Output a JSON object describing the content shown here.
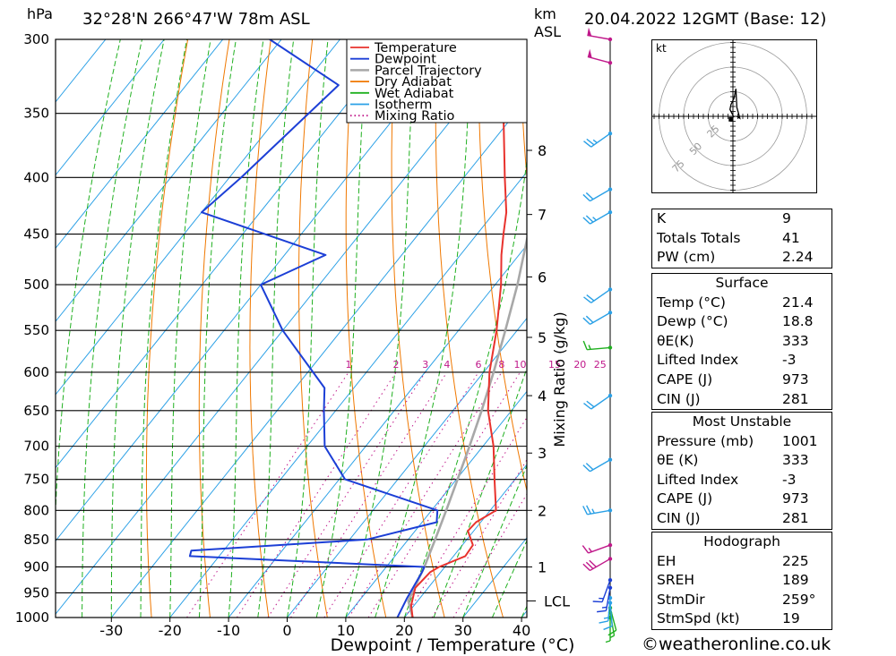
{
  "header": {
    "pressure_unit": "hPa",
    "location": "32°28'N 266°47'W 78m ASL",
    "km_label": "km",
    "asl_label": "ASL",
    "datetime": "20.04.2022 12GMT (Base: 12)"
  },
  "chart_data": {
    "type": "line",
    "title": "",
    "xlabel": "Dewpoint / Temperature (°C)",
    "ylabel": "hPa",
    "right_axis_label": "Mixing Ratio (g/kg)",
    "x_ticks": [
      -30,
      -20,
      -10,
      0,
      10,
      20,
      30,
      40
    ],
    "y_ticks": [
      300,
      350,
      400,
      450,
      500,
      550,
      600,
      650,
      700,
      750,
      800,
      850,
      900,
      950,
      1000
    ],
    "ylim": [
      1000,
      300
    ],
    "y_scale": "log",
    "skew": true,
    "legend_position": "top-right",
    "legend": [
      {
        "name": "Temperature",
        "color": "#e8322d",
        "style": "solid"
      },
      {
        "name": "Dewpoint",
        "color": "#1c3fd6",
        "style": "solid"
      },
      {
        "name": "Parcel Trajectory",
        "color": "#a8a8a8",
        "style": "solid"
      },
      {
        "name": "Dry Adiabat",
        "color": "#f07800",
        "style": "solid"
      },
      {
        "name": "Wet Adiabat",
        "color": "#20b020",
        "style": "solid"
      },
      {
        "name": "Isotherm",
        "color": "#2aa0e6",
        "style": "solid"
      },
      {
        "name": "Mixing Ratio",
        "color": "#c0188a",
        "style": "dotted"
      }
    ],
    "temperature": [
      {
        "p": 1000,
        "t": 21.4
      },
      {
        "p": 975,
        "t": 19.5
      },
      {
        "p": 940,
        "t": 17.8
      },
      {
        "p": 910,
        "t": 18.2
      },
      {
        "p": 900,
        "t": 19.0
      },
      {
        "p": 880,
        "t": 22.0
      },
      {
        "p": 860,
        "t": 21.8
      },
      {
        "p": 835,
        "t": 19.0
      },
      {
        "p": 820,
        "t": 19.2
      },
      {
        "p": 800,
        "t": 21.0
      },
      {
        "p": 750,
        "t": 16.5
      },
      {
        "p": 700,
        "t": 11.8
      },
      {
        "p": 650,
        "t": 6.0
      },
      {
        "p": 600,
        "t": 1.0
      },
      {
        "p": 550,
        "t": -3.5
      },
      {
        "p": 500,
        "t": -9.0
      },
      {
        "p": 470,
        "t": -13.0
      },
      {
        "p": 450,
        "t": -15.5
      },
      {
        "p": 430,
        "t": -18.0
      },
      {
        "p": 400,
        "t": -23.0
      },
      {
        "p": 350,
        "t": -32.0
      },
      {
        "p": 300,
        "t": -42.5
      }
    ],
    "dewpoint": [
      {
        "p": 1000,
        "t": 18.8
      },
      {
        "p": 960,
        "t": 17.8
      },
      {
        "p": 910,
        "t": 16.8
      },
      {
        "p": 900,
        "t": 16.5
      },
      {
        "p": 880,
        "t": -25.0
      },
      {
        "p": 870,
        "t": -25.5
      },
      {
        "p": 855,
        "t": -4.0
      },
      {
        "p": 850,
        "t": 3.0
      },
      {
        "p": 820,
        "t": 12.5
      },
      {
        "p": 800,
        "t": 11.0
      },
      {
        "p": 750,
        "t": -9.0
      },
      {
        "p": 700,
        "t": -17.0
      },
      {
        "p": 650,
        "t": -22.0
      },
      {
        "p": 620,
        "t": -25.0
      },
      {
        "p": 550,
        "t": -40.0
      },
      {
        "p": 500,
        "t": -50.0
      },
      {
        "p": 470,
        "t": -43.0
      },
      {
        "p": 430,
        "t": -70.0
      },
      {
        "p": 400,
        "t": -68.0
      },
      {
        "p": 330,
        "t": -64.0
      },
      {
        "p": 300,
        "t": -82.0
      }
    ],
    "parcel": [
      {
        "p": 1000,
        "t": 21.4
      },
      {
        "p": 966,
        "t": 18.4
      },
      {
        "p": 900,
        "t": 16.5
      },
      {
        "p": 850,
        "t": 14.6
      },
      {
        "p": 800,
        "t": 12.5
      },
      {
        "p": 750,
        "t": 10.2
      },
      {
        "p": 700,
        "t": 7.7
      },
      {
        "p": 650,
        "t": 4.9
      },
      {
        "p": 600,
        "t": 1.7
      },
      {
        "p": 550,
        "t": -2.0
      },
      {
        "p": 500,
        "t": -6.2
      },
      {
        "p": 450,
        "t": -11.3
      },
      {
        "p": 400,
        "t": -17.4
      },
      {
        "p": 350,
        "t": -25.0
      },
      {
        "p": 300,
        "t": -34.5
      }
    ],
    "km_ticks": [
      {
        "km": "1",
        "p": 900
      },
      {
        "km": "2",
        "p": 800
      },
      {
        "km": "3",
        "p": 710
      },
      {
        "km": "4",
        "p": 630
      },
      {
        "km": "5",
        "p": 558
      },
      {
        "km": "6",
        "p": 492
      },
      {
        "km": "7",
        "p": 432
      },
      {
        "km": "8",
        "p": 378
      }
    ],
    "lcl": {
      "label": "LCL",
      "p": 966
    },
    "mixing_ratio_labels": [
      "1",
      "2",
      "3",
      "4",
      "6",
      "8",
      "10",
      "15",
      "20",
      "25"
    ],
    "mixing_ratio_values": [
      1,
      2,
      3,
      4,
      6,
      8,
      10,
      15,
      20,
      25
    ],
    "wind_profile": [
      {
        "p": 1000,
        "dir": 180,
        "spd": 5,
        "color": "#20b020"
      },
      {
        "p": 990,
        "dir": 170,
        "spd": 5,
        "color": "#20b020"
      },
      {
        "p": 980,
        "dir": 165,
        "spd": 10,
        "color": "#20b020"
      },
      {
        "p": 970,
        "dir": 175,
        "spd": 10,
        "color": "#2aa0e6"
      },
      {
        "p": 960,
        "dir": 185,
        "spd": 15,
        "color": "#2aa0e6"
      },
      {
        "p": 940,
        "dir": 190,
        "spd": 15,
        "color": "#1c3fd6"
      },
      {
        "p": 925,
        "dir": 200,
        "spd": 15,
        "color": "#1c3fd6"
      },
      {
        "p": 885,
        "dir": 240,
        "spd": 30,
        "color": "#c0188a"
      },
      {
        "p": 860,
        "dir": 250,
        "spd": 15,
        "color": "#c0188a"
      },
      {
        "p": 800,
        "dir": 260,
        "spd": 25,
        "color": "#2aa0e6"
      },
      {
        "p": 720,
        "dir": 240,
        "spd": 20,
        "color": "#2aa0e6"
      },
      {
        "p": 630,
        "dir": 235,
        "spd": 20,
        "color": "#2aa0e6"
      },
      {
        "p": 570,
        "dir": 265,
        "spd": 15,
        "color": "#20b020"
      },
      {
        "p": 530,
        "dir": 240,
        "spd": 20,
        "color": "#2aa0e6"
      },
      {
        "p": 505,
        "dir": 235,
        "spd": 20,
        "color": "#2aa0e6"
      },
      {
        "p": 430,
        "dir": 240,
        "spd": 25,
        "color": "#2aa0e6"
      },
      {
        "p": 410,
        "dir": 240,
        "spd": 20,
        "color": "#2aa0e6"
      },
      {
        "p": 365,
        "dir": 235,
        "spd": 25,
        "color": "#2aa0e6"
      },
      {
        "p": 315,
        "dir": 285,
        "spd": 50,
        "color": "#c0188a"
      },
      {
        "p": 300,
        "dir": 280,
        "spd": 50,
        "color": "#c0188a"
      }
    ],
    "hodograph": {
      "unit_label": "kt",
      "ring_labels": [
        "25",
        "50",
        "75"
      ],
      "rings": [
        25,
        50,
        75
      ],
      "max_kt": 80,
      "trace_uv": [
        [
          4,
          0
        ],
        [
          7,
          -2
        ],
        [
          6,
          2
        ],
        [
          4,
          9
        ],
        [
          3,
          28
        ],
        [
          1,
          18
        ],
        [
          -2,
          12
        ],
        [
          -3,
          7
        ],
        [
          -1,
          3
        ],
        [
          1,
          -1
        ]
      ],
      "storm_motion_uv": [
        -2,
        -3
      ]
    },
    "indices": {
      "rows": [
        {
          "label": "K",
          "value": "9"
        },
        {
          "label": "Totals Totals",
          "value": "41"
        },
        {
          "label": "PW (cm)",
          "value": "2.24"
        }
      ],
      "surface": {
        "title": "Surface",
        "rows": [
          {
            "label": "Temp (°C)",
            "value": "21.4"
          },
          {
            "label": "Dewp (°C)",
            "value": "18.8"
          },
          {
            "label": "θE(K)",
            "value": "333"
          },
          {
            "label": "Lifted Index",
            "value": "-3"
          },
          {
            "label": "CAPE (J)",
            "value": "973"
          },
          {
            "label": "CIN (J)",
            "value": "281"
          }
        ]
      },
      "most_unstable": {
        "title": "Most Unstable",
        "rows": [
          {
            "label": "Pressure (mb)",
            "value": "1001"
          },
          {
            "label": "θE (K)",
            "value": "333"
          },
          {
            "label": "Lifted Index",
            "value": "-3"
          },
          {
            "label": "CAPE (J)",
            "value": "973"
          },
          {
            "label": "CIN (J)",
            "value": "281"
          }
        ]
      },
      "hodograph_box": {
        "title": "Hodograph",
        "rows": [
          {
            "label": "EH",
            "value": "225"
          },
          {
            "label": "SREH",
            "value": "189"
          },
          {
            "label": "StmDir",
            "value": "259°"
          },
          {
            "label": "StmSpd (kt)",
            "value": "19"
          }
        ]
      }
    }
  },
  "footer": {
    "copyright": "©weatheronline.co.uk"
  }
}
